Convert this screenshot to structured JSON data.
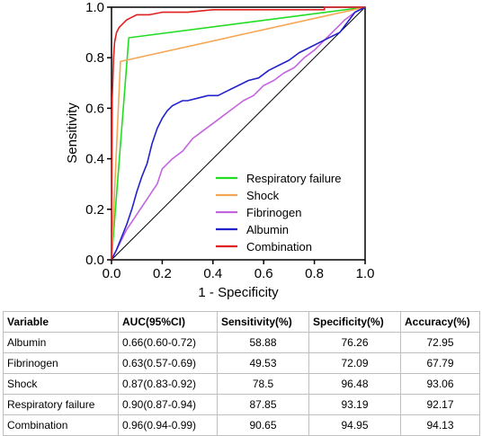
{
  "chart_data": {
    "type": "line",
    "title": "",
    "xlabel": "1 - Specificity",
    "ylabel": "Sensitivity",
    "xlim": [
      0,
      1
    ],
    "ylim": [
      0,
      1
    ],
    "x_ticks": [
      "0.0",
      "0.2",
      "0.4",
      "0.6",
      "0.8",
      "1.0"
    ],
    "y_ticks": [
      "0.0",
      "0.2",
      "0.4",
      "0.6",
      "0.8",
      "1.0"
    ],
    "grid": false,
    "legend_position": "bottom-right",
    "reference_line": {
      "x": [
        0,
        1
      ],
      "y": [
        0,
        1
      ]
    },
    "series": [
      {
        "name": "Respiratory failure",
        "color": "#22dd22",
        "x": [
          0,
          0.068,
          0.068,
          1
        ],
        "y": [
          0,
          0.879,
          0.879,
          1
        ]
      },
      {
        "name": "Shock",
        "color": "#f5a653",
        "x": [
          0,
          0.035,
          0.035,
          1
        ],
        "y": [
          0,
          0.785,
          0.785,
          1
        ]
      },
      {
        "name": "Fibrinogen",
        "color": "#c266e0",
        "x": [
          0,
          0.02,
          0.04,
          0.06,
          0.08,
          0.1,
          0.12,
          0.14,
          0.16,
          0.18,
          0.2,
          0.24,
          0.28,
          0.32,
          0.36,
          0.4,
          0.44,
          0.48,
          0.52,
          0.56,
          0.6,
          0.64,
          0.68,
          0.72,
          0.76,
          0.8,
          0.84,
          0.88,
          0.92,
          0.96,
          1.0
        ],
        "y": [
          0,
          0.04,
          0.08,
          0.12,
          0.15,
          0.18,
          0.21,
          0.24,
          0.27,
          0.3,
          0.36,
          0.4,
          0.43,
          0.48,
          0.51,
          0.54,
          0.57,
          0.6,
          0.63,
          0.65,
          0.69,
          0.71,
          0.74,
          0.76,
          0.8,
          0.83,
          0.87,
          0.91,
          0.95,
          0.98,
          1.0
        ]
      },
      {
        "name": "Albumin",
        "color": "#2222cc",
        "x": [
          0,
          0.02,
          0.04,
          0.06,
          0.08,
          0.1,
          0.12,
          0.14,
          0.16,
          0.18,
          0.2,
          0.22,
          0.24,
          0.26,
          0.28,
          0.3,
          0.34,
          0.38,
          0.42,
          0.46,
          0.5,
          0.54,
          0.58,
          0.62,
          0.66,
          0.7,
          0.74,
          0.78,
          0.82,
          0.86,
          0.9,
          0.93,
          0.96,
          1.0
        ],
        "y": [
          0,
          0.04,
          0.09,
          0.14,
          0.2,
          0.27,
          0.33,
          0.38,
          0.46,
          0.52,
          0.56,
          0.59,
          0.61,
          0.62,
          0.63,
          0.63,
          0.64,
          0.65,
          0.65,
          0.67,
          0.69,
          0.71,
          0.72,
          0.75,
          0.77,
          0.79,
          0.82,
          0.84,
          0.86,
          0.88,
          0.9,
          0.94,
          0.98,
          1.0
        ]
      },
      {
        "name": "Combination",
        "color": "#e02020",
        "x": [
          0,
          0.003,
          0.008,
          0.012,
          0.02,
          0.03,
          0.04,
          0.06,
          0.08,
          0.1,
          0.15,
          0.2,
          0.3,
          0.4,
          0.5,
          0.6,
          0.7,
          0.8,
          0.84,
          0.84,
          1.0
        ],
        "y": [
          0,
          0.64,
          0.8,
          0.86,
          0.9,
          0.92,
          0.93,
          0.95,
          0.96,
          0.97,
          0.97,
          0.98,
          0.98,
          0.99,
          0.99,
          0.99,
          0.99,
          0.99,
          0.99,
          1.0,
          1.0
        ]
      }
    ]
  },
  "table": {
    "headers": [
      "Variable",
      "AUC(95%CI)",
      "Sensitivity(%)",
      "Specificity(%)",
      "Accuracy(%)"
    ],
    "rows": [
      [
        "Albumin",
        "0.66(0.60-0.72)",
        "58.88",
        "76.26",
        "72.95"
      ],
      [
        "Fibrinogen",
        "0.63(0.57-0.69)",
        "49.53",
        "72.09",
        "67.79"
      ],
      [
        "Shock",
        "0.87(0.83-0.92)",
        "78.5",
        "96.48",
        "93.06"
      ],
      [
        "Respiratory failure",
        "0.90(0.87-0.94)",
        "87.85",
        "93.19",
        "92.17"
      ],
      [
        "Combination",
        "0.96(0.94-0.99)",
        "90.65",
        "94.95",
        "94.13"
      ]
    ]
  }
}
